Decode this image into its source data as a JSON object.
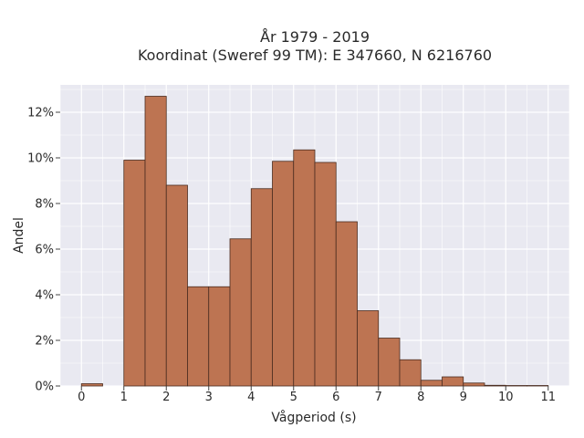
{
  "chart_data": {
    "type": "bar",
    "title": [
      "År 1979 - 2019",
      "Koordinat (Sweref 99 TM): E 347660, N 6216760"
    ],
    "xlabel": "Vågperiod (s)",
    "ylabel": "Andel",
    "bin_width": 0.5,
    "bin_starts": [
      0,
      0.5,
      1,
      1.5,
      2,
      2.5,
      3,
      3.5,
      4,
      4.5,
      5,
      5.5,
      6,
      6.5,
      7,
      7.5,
      8,
      8.5,
      9,
      9.5,
      10,
      10.5
    ],
    "values": [
      0.1,
      0.0,
      9.9,
      12.7,
      8.8,
      4.35,
      4.35,
      6.45,
      8.65,
      9.85,
      10.35,
      9.8,
      7.2,
      3.3,
      2.1,
      1.15,
      0.25,
      0.4,
      0.13,
      0.03,
      0.02,
      0.02
    ],
    "xlim": [
      -0.5,
      11.5
    ],
    "ylim": [
      0,
      13.2
    ],
    "xticks": [
      0,
      1,
      2,
      3,
      4,
      5,
      6,
      7,
      8,
      9,
      10,
      11
    ],
    "yticks": [
      0,
      2,
      4,
      6,
      8,
      10,
      12
    ],
    "ytick_labels": [
      "0%",
      "2%",
      "4%",
      "6%",
      "8%",
      "10%",
      "12%"
    ],
    "grid": true,
    "colors": {
      "bar_fill": "#bd7452",
      "bar_edge": "#4a2c20",
      "plot_bg": "#e9e9f1",
      "grid": "#ffffff"
    }
  }
}
